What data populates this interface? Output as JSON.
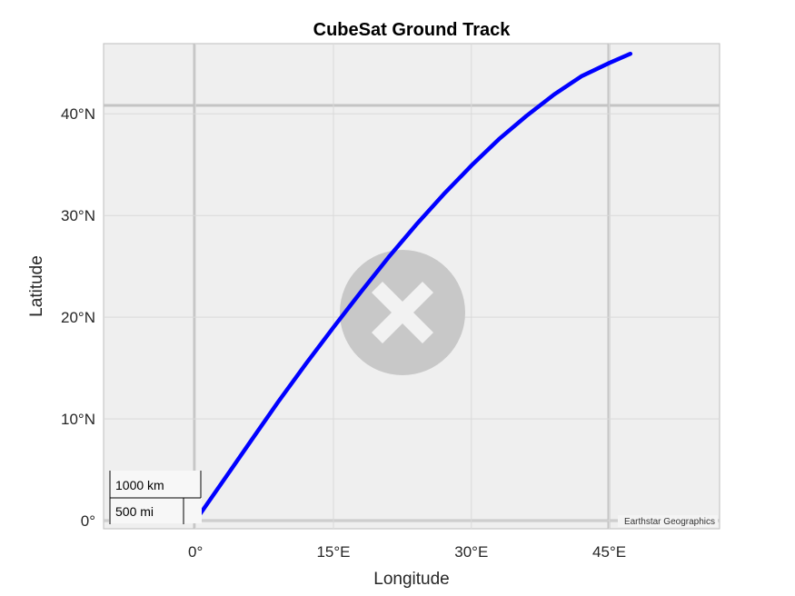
{
  "chart_data": {
    "type": "line",
    "title": "CubeSat Ground Track",
    "xlabel": "Longitude",
    "ylabel": "Latitude",
    "xlim": [
      -10,
      57
    ],
    "ylim": [
      -0.8,
      46.9
    ],
    "xticks": [
      0,
      15,
      30,
      45
    ],
    "xtick_labels": [
      "0°",
      "15°E",
      "30°E",
      "45°E"
    ],
    "yticks": [
      0,
      10,
      20,
      30,
      40
    ],
    "ytick_labels": [
      "0°",
      "10°N",
      "20°N",
      "30°N",
      "40°N"
    ],
    "grid": true,
    "series": [
      {
        "color": "#0000ff",
        "x": [
          0,
          3,
          6,
          9,
          12,
          15,
          18,
          21,
          24,
          27,
          30,
          33,
          36,
          39,
          42,
          45,
          47.3
        ],
        "y": [
          0,
          3.9,
          7.8,
          11.7,
          15.4,
          19.0,
          22.5,
          25.9,
          29.1,
          32.1,
          34.9,
          37.5,
          39.8,
          41.9,
          43.7,
          45.0,
          45.9
        ]
      }
    ]
  },
  "basemap": {
    "attribution": "Earthstar Geographics",
    "tile_error_icon": "close-circle-icon"
  },
  "scalebar": {
    "km_label": "1000 km",
    "mi_label": "500 mi"
  }
}
